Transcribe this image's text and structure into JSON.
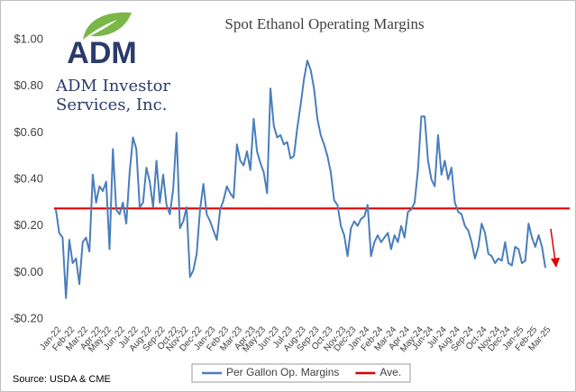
{
  "logo": {
    "brand": "ADM",
    "name_lines": [
      "ADM Investor",
      "Services, Inc."
    ]
  },
  "source": "Source:  USDA & CME",
  "chart_data": {
    "type": "line",
    "title": "Spot Ethanol Operating Margins",
    "categories": [
      "Jan-22",
      null,
      null,
      null,
      "Feb-22",
      null,
      null,
      null,
      "Mar-22",
      null,
      null,
      null,
      "Apr-22",
      null,
      null,
      "May-22",
      null,
      null,
      null,
      "Jun-22",
      null,
      null,
      null,
      "Jul-22",
      null,
      null,
      null,
      "Aug-22",
      null,
      null,
      null,
      "Sep-22",
      null,
      null,
      null,
      "Oct-22",
      null,
      null,
      "Nov-22",
      null,
      null,
      null,
      "Dec-22",
      null,
      null,
      null,
      "Jan-23",
      null,
      null,
      null,
      "Feb-23",
      null,
      null,
      null,
      "Mar-23",
      null,
      null,
      null,
      "Apr-23",
      null,
      null,
      "May-23",
      null,
      null,
      null,
      "Jun-23",
      null,
      null,
      null,
      "Jul-23",
      null,
      null,
      null,
      "Aug-23",
      null,
      null,
      null,
      "Sep-23",
      null,
      null,
      null,
      "Oct-23",
      null,
      null,
      null,
      "Nov-23",
      null,
      null,
      "Dec-23",
      null,
      null,
      null,
      "Jan-24",
      null,
      null,
      null,
      "Feb-24",
      null,
      null,
      null,
      "Mar-24",
      null,
      null,
      null,
      "Apr-24",
      null,
      null,
      null,
      "May-24",
      null,
      null,
      "Jun-24",
      null,
      null,
      null,
      "Jul-24",
      null,
      null,
      null,
      "Aug-24",
      null,
      null,
      null,
      "Sep-24",
      null,
      null,
      null,
      "Oct-24",
      null,
      null,
      null,
      "Nov-24",
      null,
      null,
      "Dec-24",
      null,
      null,
      null,
      "Jan-25",
      null,
      null,
      null,
      "Feb-25",
      null,
      null,
      null,
      "Mar-25"
    ],
    "series": [
      {
        "name": "Per Gallon Op. Margins",
        "color": "#4a7ebb",
        "values": [
          0.27,
          0.17,
          0.15,
          -0.11,
          0.14,
          0.04,
          0.06,
          -0.05,
          0.13,
          0.15,
          0.09,
          0.42,
          0.3,
          0.37,
          0.35,
          0.39,
          0.1,
          0.53,
          0.27,
          0.25,
          0.3,
          0.21,
          0.43,
          0.58,
          0.53,
          0.28,
          0.3,
          0.45,
          0.39,
          0.28,
          0.48,
          0.3,
          0.42,
          0.29,
          0.25,
          0.36,
          0.6,
          0.19,
          0.22,
          0.28,
          -0.02,
          0.01,
          0.08,
          0.27,
          0.38,
          0.25,
          0.22,
          0.18,
          0.14,
          0.27,
          0.31,
          0.37,
          0.34,
          0.32,
          0.55,
          0.48,
          0.46,
          0.52,
          0.44,
          0.66,
          0.52,
          0.47,
          0.43,
          0.34,
          0.79,
          0.63,
          0.58,
          0.59,
          0.55,
          0.56,
          0.49,
          0.5,
          0.62,
          0.72,
          0.83,
          0.91,
          0.87,
          0.79,
          0.66,
          0.59,
          0.55,
          0.5,
          0.43,
          0.31,
          0.29,
          0.2,
          0.16,
          0.07,
          0.19,
          0.22,
          0.2,
          0.23,
          0.24,
          0.29,
          0.07,
          0.13,
          0.16,
          0.13,
          0.15,
          0.17,
          0.1,
          0.16,
          0.13,
          0.2,
          0.15,
          0.26,
          0.27,
          0.3,
          0.44,
          0.67,
          0.67,
          0.48,
          0.4,
          0.37,
          0.59,
          0.42,
          0.48,
          0.4,
          0.45,
          0.3,
          0.26,
          0.25,
          0.2,
          0.18,
          0.13,
          0.06,
          0.11,
          0.21,
          0.17,
          0.08,
          0.07,
          0.04,
          0.06,
          0.05,
          0.13,
          0.04,
          0.03,
          0.11,
          0.1,
          0.04,
          0.05,
          0.21,
          0.15,
          0.11,
          0.16,
          0.11,
          0.02
        ]
      }
    ],
    "reference_line": {
      "name": "Ave.",
      "value": 0.275,
      "color": "#e00000"
    },
    "ylim": [
      -0.2,
      1.0
    ],
    "yticks": [
      {
        "value": -0.2,
        "label": "-$0.20"
      },
      {
        "value": 0,
        "label": "$0.00"
      },
      {
        "value": 0.2,
        "label": "$0.20"
      },
      {
        "value": 0.4,
        "label": "$0.40"
      },
      {
        "value": 0.6,
        "label": "$0.60"
      },
      {
        "value": 0.8,
        "label": "$0.80"
      },
      {
        "value": 1.0,
        "label": "$1.00"
      }
    ],
    "grid": false,
    "legend": "bottom"
  }
}
